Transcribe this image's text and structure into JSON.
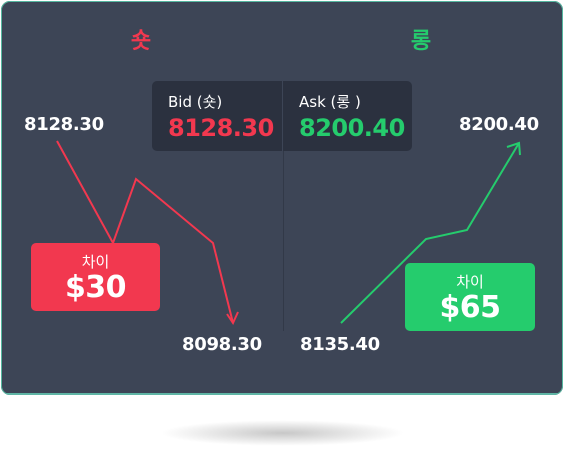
{
  "short": {
    "title": "숏",
    "color": "#f2384f",
    "start_price": "8128.30",
    "end_price": "8098.30",
    "diff_label": "차이",
    "diff_value": "$30"
  },
  "long": {
    "title": "롱",
    "color": "#25cc6d",
    "start_price": "8135.40",
    "end_price": "8200.40",
    "diff_label": "차이",
    "diff_value": "$65"
  },
  "quote": {
    "bid_label": "Bid (숏)",
    "bid_value": "8128.30",
    "ask_label": "Ask (롱 )",
    "ask_value": "8200.40"
  },
  "colors": {
    "background": "#3d4556",
    "quote_panel": "#2b313f",
    "short": "#f2384f",
    "long": "#25cc6d"
  }
}
